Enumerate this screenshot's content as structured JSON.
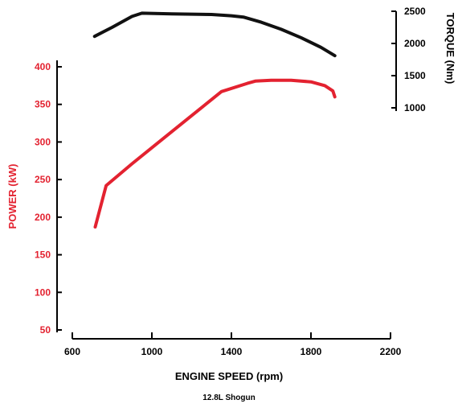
{
  "chart_data": {
    "type": "line",
    "xlabel": "ENGINE SPEED (rpm)",
    "ylabel_left": "POWER (kW)",
    "ylabel_right": "TORQUE (Nm)",
    "caption": "12.8L Shogun",
    "xlim": [
      600,
      2200
    ],
    "ylim_left": [
      50,
      400
    ],
    "ylim_right": [
      1000,
      2500
    ],
    "x_ticks": [
      600,
      1000,
      1400,
      1800,
      2200
    ],
    "y_left_ticks": [
      50,
      100,
      150,
      200,
      250,
      300,
      350,
      400
    ],
    "y_right_ticks": [
      1000,
      1500,
      2000,
      2500
    ],
    "grid": false,
    "series": [
      {
        "axis": "right",
        "color": "#111111",
        "x": [
          712,
          800,
          900,
          950,
          1100,
          1300,
          1400,
          1460,
          1550,
          1650,
          1750,
          1850,
          1920
        ],
        "y": [
          2110,
          2250,
          2420,
          2470,
          2460,
          2450,
          2430,
          2410,
          2330,
          2220,
          2090,
          1940,
          1810
        ]
      },
      {
        "axis": "left",
        "color": "#e32230",
        "x": [
          715,
          770,
          900,
          1050,
          1200,
          1350,
          1480,
          1520,
          1600,
          1700,
          1800,
          1870,
          1910,
          1920
        ],
        "y": [
          187,
          242,
          271,
          303,
          335,
          367,
          378,
          381,
          382,
          382,
          380,
          375,
          368,
          360
        ]
      }
    ]
  }
}
